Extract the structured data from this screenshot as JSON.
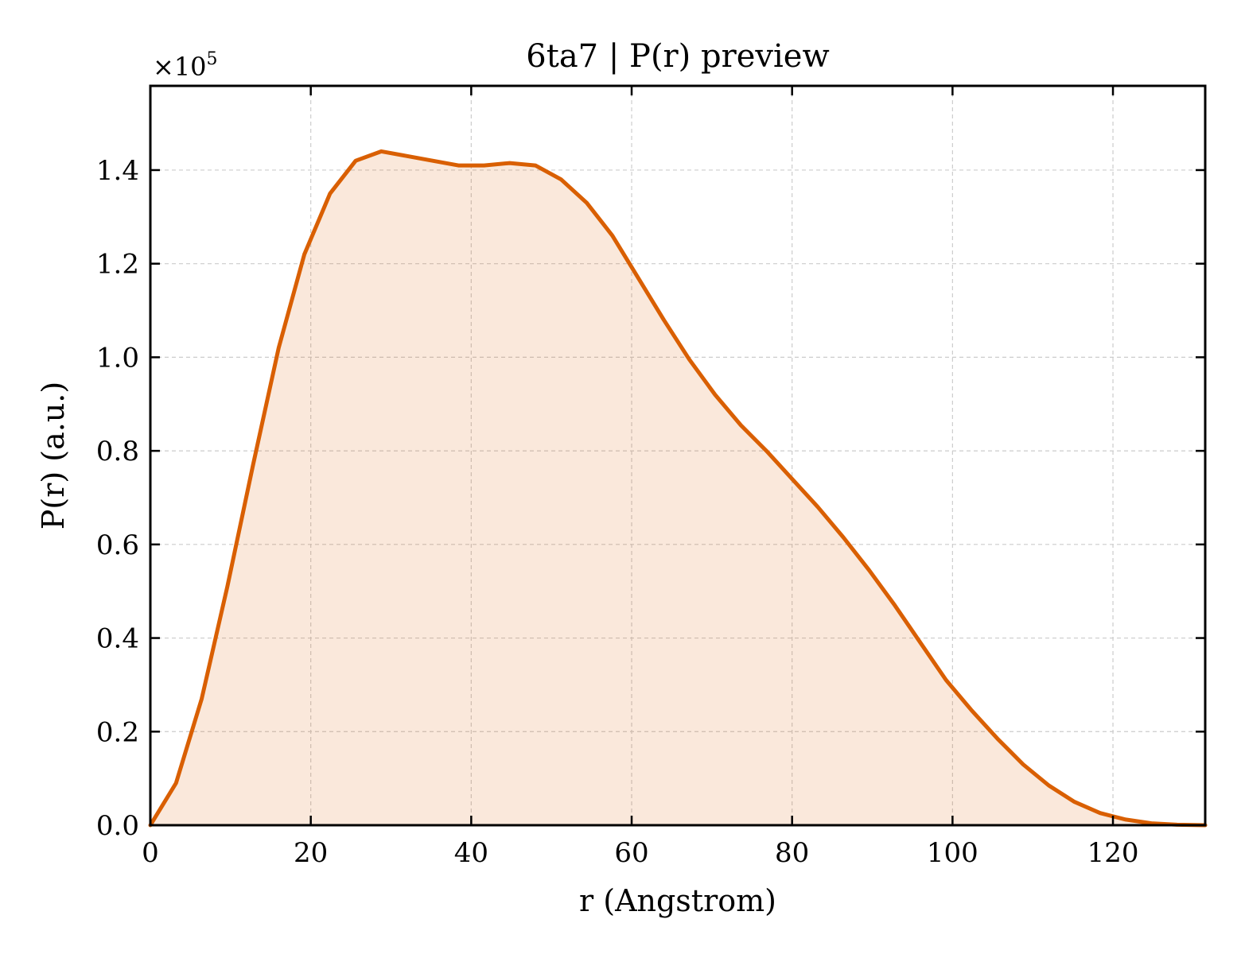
{
  "chart_data": {
    "type": "area",
    "title": "6ta7 | P(r) preview",
    "xlabel": "r (Angstrom)",
    "ylabel": "P(r) (a.u.)",
    "y_scale_label": {
      "prefix": "×10",
      "exponent": "5"
    },
    "xlim": [
      0,
      131.5
    ],
    "ylim": [
      0,
      1.58
    ],
    "x_ticks": [
      0,
      20,
      40,
      60,
      80,
      100,
      120
    ],
    "x_tick_labels": [
      "0",
      "20",
      "40",
      "60",
      "80",
      "100",
      "120"
    ],
    "y_ticks": [
      0,
      0.2,
      0.4,
      0.6,
      0.8,
      1.0,
      1.2,
      1.4
    ],
    "y_tick_labels": [
      "0.0",
      "0.2",
      "0.4",
      "0.6",
      "0.8",
      "1.0",
      "1.2",
      "1.4"
    ],
    "grid": true,
    "series": [
      {
        "color": "#d95f02",
        "fill_color": "#d95f02",
        "fill_opacity": 0.14,
        "x": [
          0,
          3.2,
          6.4,
          9.6,
          12.8,
          16.0,
          19.2,
          22.4,
          25.6,
          28.8,
          32.0,
          35.2,
          38.4,
          41.6,
          44.8,
          48.0,
          51.2,
          54.4,
          57.6,
          60.8,
          64.0,
          67.2,
          70.4,
          73.6,
          76.8,
          80.0,
          83.2,
          86.4,
          89.6,
          92.8,
          96.0,
          99.2,
          102.4,
          105.6,
          108.8,
          112.0,
          115.2,
          118.4,
          121.6,
          124.8,
          128.0,
          131.5
        ],
        "y": [
          0.0,
          0.09,
          0.27,
          0.51,
          0.77,
          1.02,
          1.22,
          1.35,
          1.42,
          1.44,
          1.43,
          1.42,
          1.41,
          1.41,
          1.415,
          1.41,
          1.38,
          1.33,
          1.26,
          1.17,
          1.08,
          0.995,
          0.92,
          0.855,
          0.8,
          0.74,
          0.68,
          0.615,
          0.545,
          0.47,
          0.39,
          0.31,
          0.245,
          0.185,
          0.13,
          0.085,
          0.05,
          0.026,
          0.012,
          0.004,
          0.001,
          0.0
        ]
      }
    ]
  }
}
